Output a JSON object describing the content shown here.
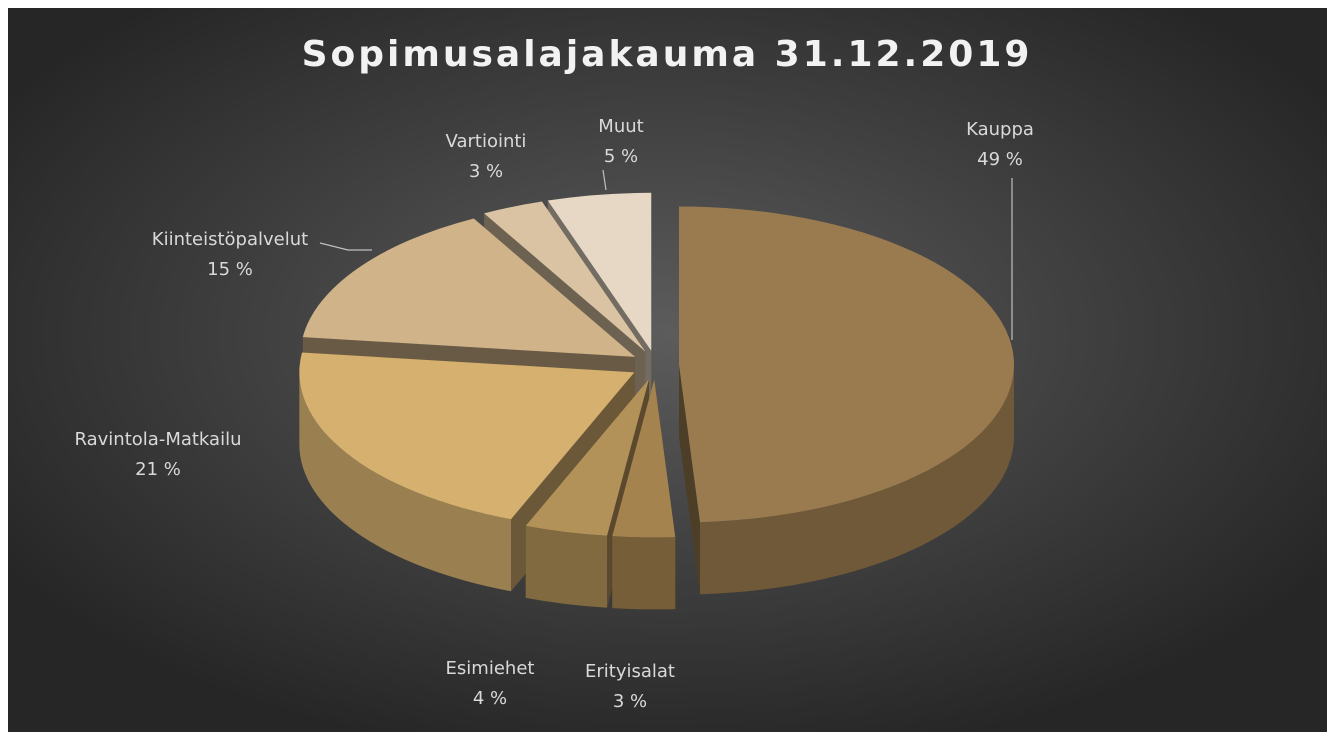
{
  "chart_data": {
    "type": "pie",
    "title": "Sopimusalajakauma 31.12.2019",
    "categories": [
      "Kauppa",
      "Erityisalat",
      "Esimiehet",
      "Ravintola-Matkailu",
      "Kiinteistöpalvelut",
      "Vartiointi",
      "Muut"
    ],
    "values": [
      49,
      3,
      4,
      21,
      15,
      3,
      5
    ],
    "value_labels": [
      "49 %",
      "3 %",
      "4 %",
      "21 %",
      "15 %",
      "3 %",
      "5 %"
    ],
    "colors": [
      "#9a7b4f",
      "#a4834f",
      "#b39259",
      "#d6b06f",
      "#d1b38a",
      "#d9c3a3",
      "#e6d8c4"
    ]
  }
}
